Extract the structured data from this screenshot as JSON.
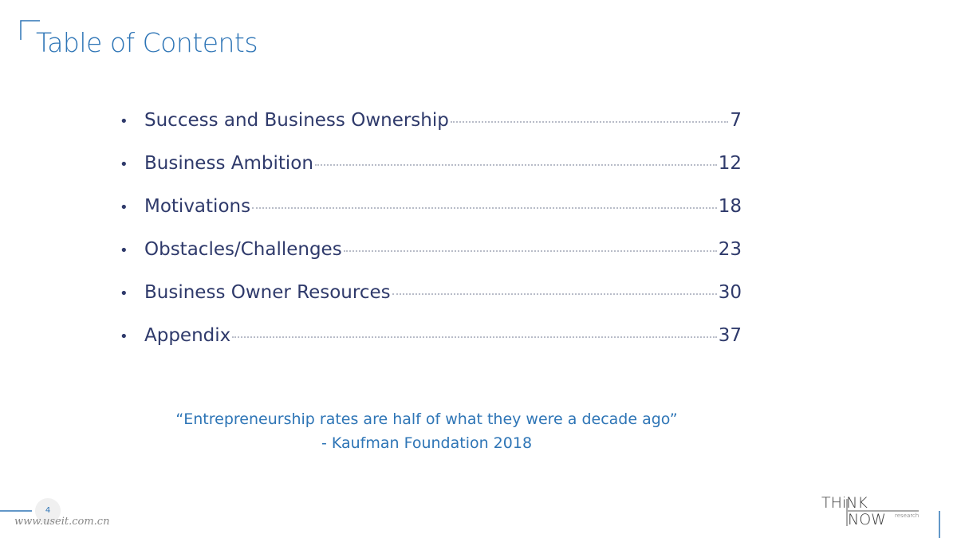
{
  "header": {
    "title": "Table of Contents"
  },
  "toc": [
    {
      "label": "Success and Business Ownership",
      "page": 7
    },
    {
      "label": "Business Ambition",
      "page": 12
    },
    {
      "label": "Motivations",
      "page": 18
    },
    {
      "label": "Obstacles/Challenges",
      "page": 23
    },
    {
      "label": "Business Owner Resources",
      "page": 30
    },
    {
      "label": "Appendix",
      "page": 37
    }
  ],
  "quote": {
    "text": "“Entrepreneurship rates are half of what they were a decade ago”",
    "source": "- Kaufman Foundation 2018"
  },
  "footer": {
    "page_number": 4,
    "watermark": "www.useit.com.cn",
    "logo_top": "THiNK",
    "logo_bottom": "NOW",
    "logo_small": "research"
  }
}
